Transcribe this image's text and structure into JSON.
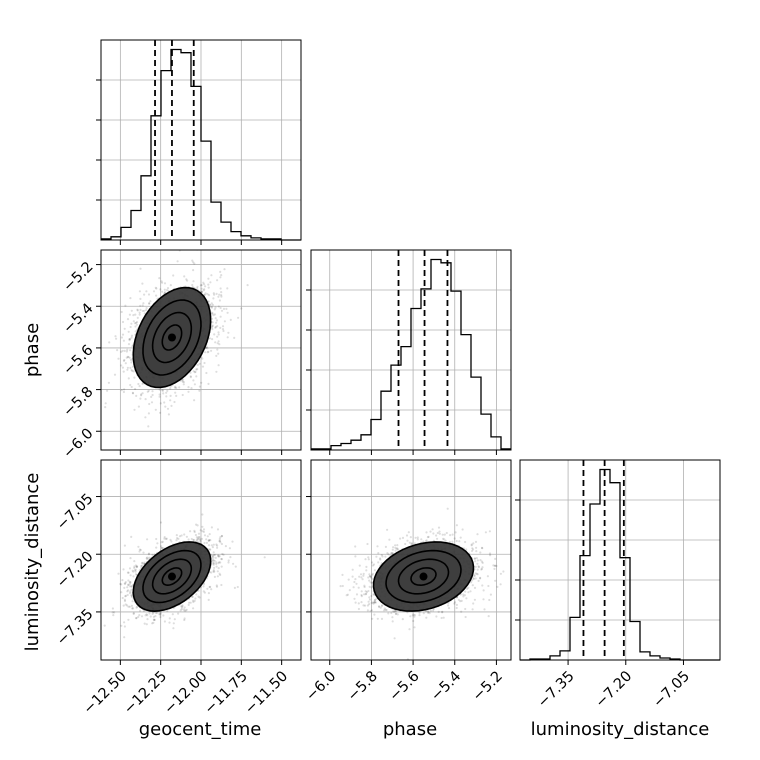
{
  "chart_data": {
    "type": "corner",
    "parameters": [
      "geocent_time",
      "phase",
      "luminosity_distance"
    ],
    "axis_labels": {
      "x": [
        "geocent_time",
        "phase",
        "luminosity_distance"
      ],
      "y": [
        "phase",
        "luminosity_distance"
      ]
    },
    "ranges": {
      "geocent_time": [
        -12.62,
        -11.38
      ],
      "phase": [
        -6.09,
        -5.13
      ],
      "luminosity_distance": [
        -7.475,
        -6.955
      ]
    },
    "ticks": {
      "geocent_time": [
        -12.5,
        -12.25,
        -12.0,
        -11.75,
        -11.5
      ],
      "phase": [
        -6.0,
        -5.8,
        -5.6,
        -5.4,
        -5.2
      ],
      "luminosity_distance": [
        -7.35,
        -7.2,
        -7.05
      ]
    },
    "tick_labels": {
      "geocent_time": [
        "−12.50",
        "−12.25",
        "−12.00",
        "−11.75",
        "−11.50"
      ],
      "phase": [
        "−6.0",
        "−5.8",
        "−5.6",
        "−5.4",
        "−5.2"
      ],
      "luminosity_distance": [
        "−7.35",
        "−7.20",
        "−7.05"
      ]
    },
    "quantiles": {
      "geocent_time": [
        -12.285,
        -12.18,
        -12.045
      ],
      "phase": [
        -5.67,
        -5.545,
        -5.435
      ],
      "luminosity_distance": [
        -7.31,
        -7.255,
        -7.205
      ]
    },
    "histograms": {
      "geocent_time": {
        "edges": [
          -12.62,
          -12.558,
          -12.496,
          -12.434,
          -12.372,
          -12.31,
          -12.248,
          -12.186,
          -12.124,
          -12.062,
          -12.0,
          -11.938,
          -11.876,
          -11.814,
          -11.752,
          -11.69,
          -11.628,
          -11.566,
          -11.504,
          -11.442,
          -11.38
        ],
        "counts": [
          1,
          3,
          12,
          28,
          61,
          118,
          161,
          181,
          178,
          146,
          94,
          36,
          17,
          8,
          4,
          2,
          1,
          1,
          0,
          0
        ]
      },
      "phase": {
        "edges": [
          -6.09,
          -6.042,
          -5.994,
          -5.946,
          -5.898,
          -5.85,
          -5.802,
          -5.754,
          -5.706,
          -5.658,
          -5.61,
          -5.562,
          -5.514,
          -5.466,
          -5.418,
          -5.37,
          -5.322,
          -5.274,
          -5.226,
          -5.178,
          -5.13
        ],
        "counts": [
          1,
          1,
          4,
          6,
          9,
          14,
          28,
          54,
          78,
          95,
          130,
          148,
          175,
          172,
          146,
          106,
          67,
          33,
          12,
          1
        ]
      },
      "luminosity_distance": {
        "edges": [
          -7.475,
          -7.449,
          -7.423,
          -7.397,
          -7.371,
          -7.345,
          -7.319,
          -7.293,
          -7.267,
          -7.241,
          -7.215,
          -7.189,
          -7.163,
          -7.137,
          -7.111,
          -7.085,
          -7.059,
          -7.033,
          -7.007,
          -6.981,
          -6.955
        ],
        "counts": [
          0,
          1,
          1,
          4,
          9,
          42,
          103,
          154,
          188,
          175,
          101,
          38,
          8,
          4,
          2,
          1,
          0,
          0,
          0,
          0
        ]
      }
    },
    "pairs": [
      {
        "x": "geocent_time",
        "y": "phase",
        "mean": [
          -12.18,
          -5.55
        ],
        "sd": [
          0.12,
          0.12
        ],
        "rho": 0.35
      },
      {
        "x": "geocent_time",
        "y": "luminosity_distance",
        "mean": [
          -12.18,
          -7.258
        ],
        "sd": [
          0.12,
          0.045
        ],
        "rho": 0.45
      },
      {
        "x": "phase",
        "y": "luminosity_distance",
        "mean": [
          -5.55,
          -7.258
        ],
        "sd": [
          0.12,
          0.045
        ],
        "rho": 0.25
      }
    ],
    "contour_levels": [
      0.5,
      1.0,
      1.5,
      2.0
    ],
    "grid": true
  }
}
